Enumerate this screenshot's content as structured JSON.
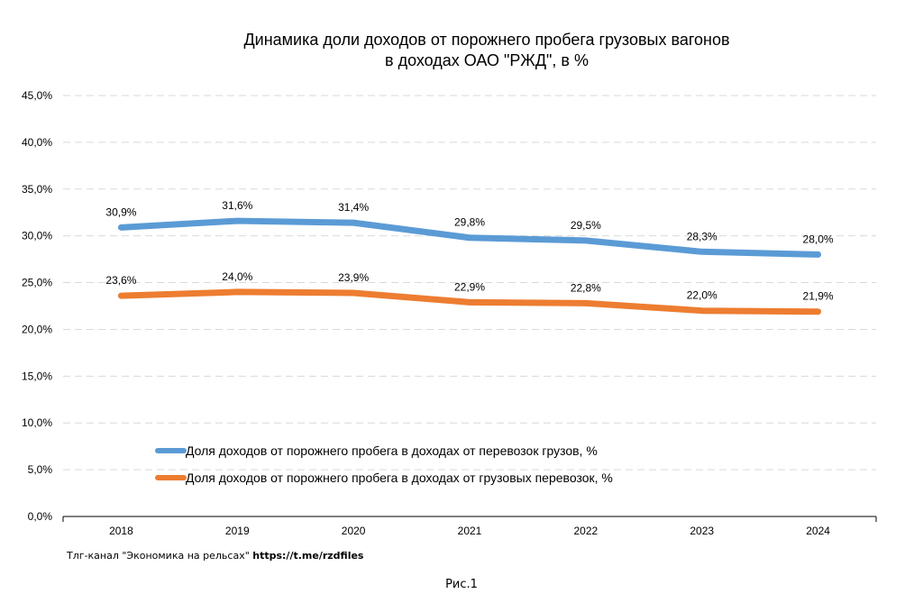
{
  "chart_data": {
    "type": "line",
    "title": [
      "Динамика доли доходов  от порожнего пробега грузовых  вагонов",
      "в доходах  ОАО \"РЖД\", в %"
    ],
    "categories": [
      "2018",
      "2019",
      "2020",
      "2021",
      "2022",
      "2023",
      "2024"
    ],
    "series": [
      {
        "name": "Доля доходов от порожнего пробега в доходах от перевозок грузов, %",
        "color": "#5b9bd5",
        "values": [
          30.9,
          31.6,
          31.4,
          29.8,
          29.5,
          28.3,
          28.0
        ],
        "labels": [
          "30,9%",
          "31,6%",
          "31,4%",
          "29,8%",
          "29,5%",
          "28,3%",
          "28,0%"
        ]
      },
      {
        "name": "Доля доходов от порожнего пробега в доходах от грузовых перевозок, %",
        "color": "#ed7d31",
        "values": [
          23.6,
          24.0,
          23.9,
          22.9,
          22.8,
          22.0,
          21.9
        ],
        "labels": [
          "23,6%",
          "24,0%",
          "23,9%",
          "22,9%",
          "22,8%",
          "22,0%",
          "21,9%"
        ]
      }
    ],
    "ylim": [
      0,
      45
    ],
    "yticks": [
      0,
      5,
      10,
      15,
      20,
      25,
      30,
      35,
      40,
      45
    ],
    "ytick_labels": [
      "0,0%",
      "5,0%",
      "10,0%",
      "15,0%",
      "20,0%",
      "25,0%",
      "30,0%",
      "35,0%",
      "40,0%",
      "45,0%"
    ],
    "grid": true,
    "legend_position": "lower-center"
  },
  "footer": {
    "source_prefix": "Тлг-канал \"Экономика на рельсах\" ",
    "source_link": "https://t.me/rzdfiles",
    "figure_label": "Рис.1"
  }
}
